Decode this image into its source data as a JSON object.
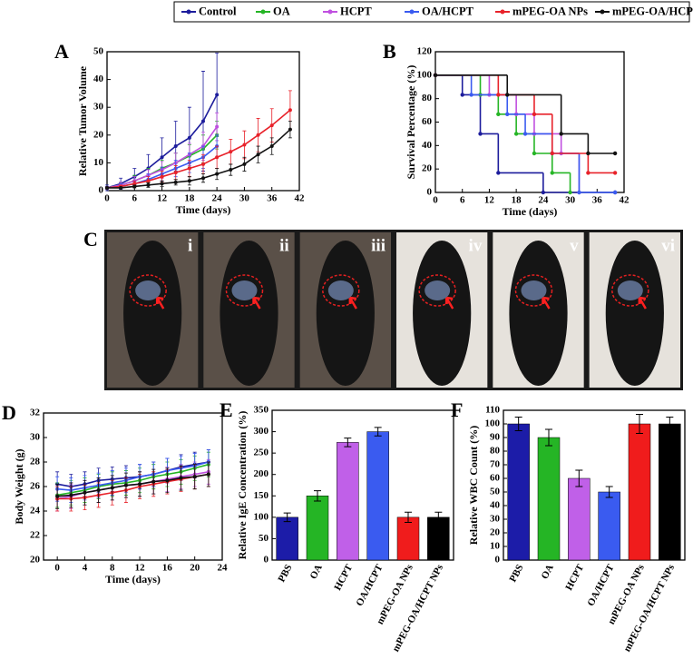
{
  "chart_data": [
    {
      "type": "line",
      "annotation": "A",
      "xlabel": "Time (days)",
      "ylabel": "Relative Tumor Volume",
      "x": [
        0,
        3,
        6,
        9,
        12,
        15,
        18,
        21,
        24,
        27,
        30,
        33,
        36,
        40
      ],
      "xlim": [
        0,
        42
      ],
      "xticks": [
        0,
        6,
        12,
        18,
        24,
        30,
        36,
        42
      ],
      "ylim": [
        0,
        50
      ],
      "yticks": [
        0,
        10,
        20,
        30,
        40,
        50
      ],
      "series": [
        {
          "name": "Control",
          "color": "#1c1c9c",
          "values": [
            1,
            2.5,
            5,
            8,
            12,
            16,
            19,
            25,
            34.5,
            null,
            null,
            null,
            null,
            null
          ],
          "errors": [
            1,
            2,
            3,
            5,
            7,
            9,
            11,
            18,
            15,
            null,
            null,
            null,
            null,
            null
          ]
        },
        {
          "name": "OA",
          "color": "#25b525",
          "values": [
            1,
            2,
            3.5,
            5.5,
            8,
            10,
            12.5,
            15,
            20,
            null,
            null,
            null,
            null,
            null
          ],
          "errors": [
            0.5,
            1,
            2,
            2.5,
            3,
            3.5,
            4,
            5,
            5,
            null,
            null,
            null,
            null,
            null
          ]
        },
        {
          "name": "HCPT",
          "color": "#c050e0",
          "values": [
            1,
            2,
            3.5,
            5.5,
            7.5,
            10,
            13,
            16,
            23,
            null,
            null,
            null,
            null,
            null
          ],
          "errors": [
            0.5,
            1,
            1.5,
            2,
            3,
            3.5,
            4,
            5,
            5,
            null,
            null,
            null,
            null,
            null
          ]
        },
        {
          "name": "OA/HCPT",
          "color": "#3a5bf0",
          "values": [
            1,
            1.5,
            2.5,
            4,
            6,
            8,
            10,
            12,
            16,
            null,
            null,
            null,
            null,
            null
          ],
          "errors": [
            0.5,
            1,
            1,
            2,
            2.5,
            3,
            3.5,
            4,
            4,
            null,
            null,
            null,
            null,
            null
          ]
        },
        {
          "name": "mPEG-OA NPs",
          "color": "#e8222a",
          "values": [
            1,
            1.5,
            2.5,
            3.5,
            5,
            6.5,
            8,
            9.5,
            12,
            14,
            16.5,
            20,
            23.5,
            29
          ],
          "errors": [
            0.3,
            0.5,
            1,
            1.5,
            2,
            2.5,
            3,
            3.5,
            4,
            4.5,
            5,
            6,
            6,
            7
          ]
        },
        {
          "name": "mPEG-OA/HCPT NPs",
          "color": "#111111",
          "values": [
            1,
            1,
            1.5,
            2,
            2.5,
            3,
            3.5,
            4.5,
            6,
            7.5,
            9.5,
            13,
            16,
            22
          ],
          "errors": [
            0.2,
            0.3,
            0.5,
            0.8,
            1,
            1,
            1.5,
            1.5,
            2,
            2,
            2.5,
            3,
            3,
            3
          ]
        }
      ]
    },
    {
      "type": "step",
      "annotation": "B",
      "xlabel": "Time (days)",
      "ylabel": "Survival Percentage (%)",
      "xlim": [
        0,
        42
      ],
      "xticks": [
        0,
        6,
        12,
        18,
        24,
        30,
        36,
        42
      ],
      "ylim": [
        0,
        120
      ],
      "yticks": [
        0,
        20,
        40,
        60,
        80,
        100,
        120
      ],
      "series": [
        {
          "name": "Control",
          "color": "#1c1c9c",
          "x": [
            0,
            6,
            10,
            14,
            24,
            40
          ],
          "values": [
            100,
            83.3,
            50,
            16.7,
            0,
            0
          ]
        },
        {
          "name": "OA",
          "color": "#25b525",
          "x": [
            0,
            10,
            14,
            18,
            22,
            26,
            30
          ],
          "values": [
            100,
            83.3,
            66.7,
            50,
            33.3,
            16.7,
            0
          ]
        },
        {
          "name": "HCPT",
          "color": "#c050e0",
          "x": [
            0,
            12,
            18,
            22,
            28,
            32
          ],
          "values": [
            100,
            83.3,
            66.7,
            50,
            33.3,
            0
          ]
        },
        {
          "name": "OA/HCPT",
          "color": "#3a5bf0",
          "x": [
            0,
            8,
            16,
            20,
            26,
            32,
            40
          ],
          "values": [
            100,
            83.3,
            66.7,
            50,
            33.3,
            0,
            0
          ]
        },
        {
          "name": "mPEG-OA NPs",
          "color": "#e8222a",
          "x": [
            0,
            14,
            22,
            26,
            34,
            40
          ],
          "values": [
            100,
            83.3,
            66.7,
            33.3,
            16.7,
            16.7
          ]
        },
        {
          "name": "mPEG-OA/HCPT NPs",
          "color": "#111111",
          "x": [
            0,
            16,
            28,
            34,
            40
          ],
          "values": [
            100,
            83.3,
            50,
            33.3,
            33.3
          ]
        }
      ]
    },
    {
      "type": "line",
      "annotation": "D",
      "xlabel": "Time (days)",
      "ylabel": "Body Weight (g)",
      "x": [
        0,
        2,
        4,
        6,
        8,
        10,
        12,
        14,
        16,
        18,
        20,
        22
      ],
      "xlim": [
        -2,
        24
      ],
      "xticks": [
        0,
        4,
        8,
        12,
        16,
        20,
        24
      ],
      "ylim": [
        20,
        32
      ],
      "yticks": [
        20,
        22,
        24,
        26,
        28,
        30,
        32
      ],
      "series": [
        {
          "name": "Control",
          "color": "#1c1c9c",
          "values": [
            26.2,
            26.0,
            26.2,
            26.5,
            26.6,
            26.7,
            26.8,
            27.0,
            27.3,
            27.6,
            27.8,
            28.0
          ],
          "errors": [
            1,
            1,
            1,
            1,
            1,
            1,
            1,
            1,
            1,
            1,
            1,
            1
          ]
        },
        {
          "name": "OA",
          "color": "#25b525",
          "values": [
            25.3,
            25.5,
            25.7,
            26.0,
            26.2,
            26.3,
            26.5,
            26.8,
            27.0,
            27.2,
            27.5,
            27.8
          ],
          "errors": [
            1,
            1,
            1,
            1,
            1,
            1,
            1,
            1,
            1,
            1,
            1,
            1
          ]
        },
        {
          "name": "HCPT",
          "color": "#c050e0",
          "values": [
            25.0,
            25.2,
            25.5,
            25.7,
            25.9,
            26.1,
            26.2,
            26.4,
            26.6,
            26.8,
            27.0,
            27.2
          ],
          "errors": [
            1,
            1,
            1,
            1,
            1,
            1,
            1,
            1,
            1,
            1,
            1,
            1
          ]
        },
        {
          "name": "OA/HCPT",
          "color": "#3a5bf0",
          "values": [
            25.8,
            25.7,
            25.9,
            26.1,
            26.3,
            26.5,
            26.8,
            27.0,
            27.3,
            27.5,
            27.7,
            28.0
          ],
          "errors": [
            1,
            1,
            1,
            1,
            1,
            1,
            1,
            1,
            1,
            1,
            1,
            1
          ]
        },
        {
          "name": "mPEG-OA NPs",
          "color": "#e8222a",
          "values": [
            25.0,
            25.0,
            25.1,
            25.3,
            25.5,
            25.7,
            26.0,
            26.2,
            26.4,
            26.6,
            26.8,
            27.0
          ],
          "errors": [
            1,
            1,
            1,
            1,
            1,
            1,
            1,
            1,
            1,
            1,
            1,
            1
          ]
        },
        {
          "name": "mPEG-OA/HCPT NPs",
          "color": "#111111",
          "values": [
            25.2,
            25.3,
            25.5,
            25.7,
            25.9,
            26.1,
            26.2,
            26.4,
            26.5,
            26.7,
            26.8,
            27.0
          ],
          "errors": [
            1,
            1,
            1,
            1,
            1,
            1,
            1,
            1,
            1,
            1,
            1,
            1
          ]
        }
      ]
    },
    {
      "type": "bar",
      "annotation": "E",
      "ylabel": "Relative IgE Concentration (%)",
      "categories": [
        "PBS",
        "OA",
        "HCPT",
        "OA/HCPT",
        "mPEG-OA NPs",
        "mPEG-OA/HCPT NPs"
      ],
      "values": [
        100,
        150,
        275,
        300,
        100,
        100
      ],
      "errors": [
        10,
        12,
        10,
        10,
        12,
        12
      ],
      "colors": [
        "#1c1ca8",
        "#25b525",
        "#c060e8",
        "#3a5bf0",
        "#f01c1c",
        "#000000"
      ],
      "ylim": [
        0,
        350
      ],
      "yticks": [
        0,
        50,
        100,
        150,
        200,
        250,
        300,
        350
      ]
    },
    {
      "type": "bar",
      "annotation": "F",
      "ylabel": "Relative WBC Count (%)",
      "categories": [
        "PBS",
        "OA",
        "HCPT",
        "OA/HCPT",
        "mPEG-OA NPs",
        "mPEG-OA/HCPT NPs"
      ],
      "values": [
        100,
        90,
        60,
        50,
        100,
        100
      ],
      "errors": [
        5,
        6,
        6,
        4,
        7,
        5
      ],
      "colors": [
        "#1c1ca8",
        "#25b525",
        "#c060e8",
        "#3a5bf0",
        "#f01c1c",
        "#000000"
      ],
      "ylim": [
        0,
        110
      ],
      "yticks": [
        0,
        10,
        20,
        30,
        40,
        50,
        60,
        70,
        80,
        90,
        100,
        110
      ]
    }
  ],
  "image_panel": {
    "label": "C",
    "captions": [
      "i",
      "ii",
      "iii",
      "iv",
      "v",
      "vi"
    ]
  }
}
